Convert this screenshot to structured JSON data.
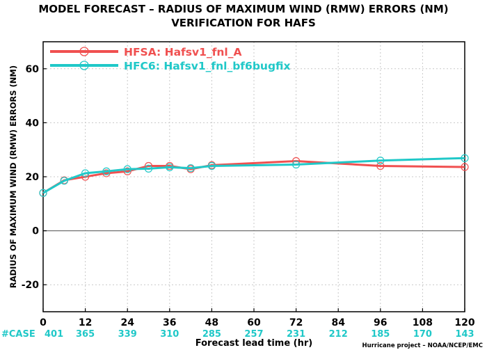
{
  "chart_data": {
    "type": "line",
    "title_line1": "MODEL FORECAST – RADIUS OF MAXIMUM WIND (RMW) ERRORS (NM)",
    "title_line2": "VERIFICATION FOR HAFS",
    "xlabel": "Forecast lead time (hr)",
    "ylabel": "RADIUS OF MAXIMUM WIND (RMW) ERRORS (NM)",
    "xlim": [
      0,
      120
    ],
    "ylim": [
      -30,
      70
    ],
    "x_ticks": [
      0,
      12,
      24,
      36,
      48,
      60,
      72,
      84,
      96,
      108,
      120
    ],
    "y_ticks": [
      -20,
      0,
      20,
      40,
      60
    ],
    "y_tick_labels": [
      "-20",
      "0",
      "20",
      "40",
      "60"
    ],
    "grid": true,
    "legend_position": "top-left",
    "series": [
      {
        "name": "HFSA: Hafsv1_fnl_A",
        "color": "#f05050",
        "x": [
          0,
          6,
          12,
          18,
          24,
          30,
          36,
          42,
          48,
          72,
          96,
          120
        ],
        "values": [
          14.0,
          18.7,
          20.0,
          21.3,
          22.0,
          24.0,
          24.0,
          22.8,
          24.3,
          25.8,
          24.0,
          23.6
        ]
      },
      {
        "name": "HFC6: Hafsv1_fnl_bf6bugfix",
        "color": "#20c8c8",
        "x": [
          0,
          6,
          12,
          18,
          24,
          30,
          36,
          42,
          48,
          72,
          96,
          120
        ],
        "values": [
          14.0,
          18.5,
          21.3,
          22.0,
          22.8,
          23.0,
          23.5,
          23.2,
          24.0,
          24.5,
          26.0,
          26.9
        ]
      }
    ],
    "case_label": "#CASE",
    "case_counts": [
      {
        "x": 0,
        "n": "401"
      },
      {
        "x": 12,
        "n": "365"
      },
      {
        "x": 24,
        "n": "339"
      },
      {
        "x": 36,
        "n": "310"
      },
      {
        "x": 48,
        "n": "285"
      },
      {
        "x": 60,
        "n": "257"
      },
      {
        "x": 72,
        "n": "231"
      },
      {
        "x": 84,
        "n": "212"
      },
      {
        "x": 96,
        "n": "185"
      },
      {
        "x": 108,
        "n": "170"
      },
      {
        "x": 120,
        "n": "143"
      }
    ],
    "credit": "Hurricane project – NOAA/NCEP/EMC",
    "colors": {
      "case_counts": "#20c8c8",
      "grid": "#c8c8c8",
      "axis": "#000000"
    }
  }
}
